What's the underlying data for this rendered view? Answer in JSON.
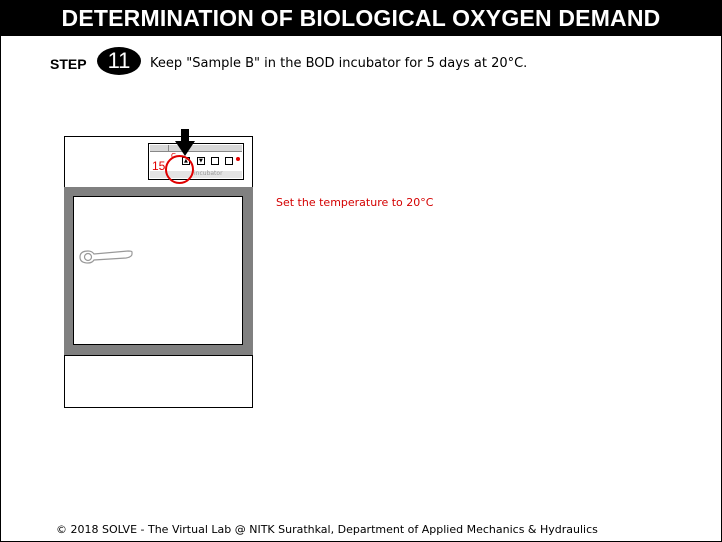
{
  "header": {
    "title": "DETERMINATION OF BIOLOGICAL OXYGEN DEMAND"
  },
  "step": {
    "label": "STEP",
    "number": "11",
    "instruction": "Keep \"Sample B\" in the BOD incubator for 5 days at 20°C."
  },
  "incubator": {
    "panel": {
      "temperature_reading": "15",
      "unit": "C",
      "brand_text": "incubator"
    }
  },
  "hint": {
    "text": "Set the temperature to 20°C"
  },
  "footer": {
    "text": "© 2018 SOLVE - The Virtual Lab @ NITK Surathkal, Department of Applied Mechanics & Hydraulics"
  },
  "colors": {
    "accent_red": "#e00000",
    "cabinet_gray": "#808080",
    "title_bg": "#000000"
  }
}
